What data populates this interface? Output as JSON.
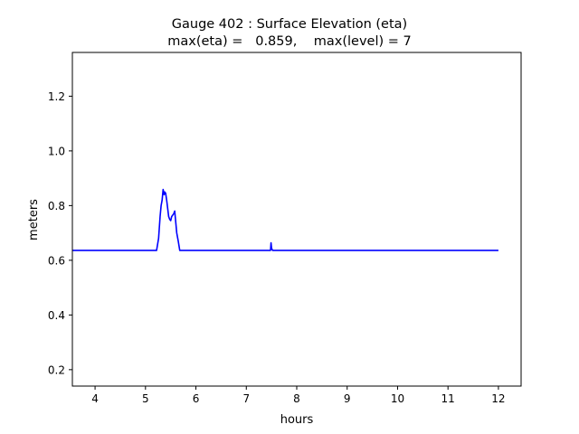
{
  "chart_data": {
    "type": "line",
    "title": "Gauge 402 : Surface Elevation (eta)",
    "subtitle": "max(eta) =   0.859,    max(level) = 7",
    "xlabel": "hours",
    "ylabel": "meters",
    "xlim": [
      3.55,
      12.45
    ],
    "ylim": [
      0.14,
      1.36
    ],
    "xticks": [
      4,
      5,
      6,
      7,
      8,
      9,
      10,
      11,
      12
    ],
    "xtick_labels": [
      "4",
      "5",
      "6",
      "7",
      "8",
      "9",
      "10",
      "11",
      "12"
    ],
    "yticks": [
      0.2,
      0.4,
      0.6,
      0.8,
      1.0,
      1.2
    ],
    "ytick_labels": [
      "0.2",
      "0.4",
      "0.6",
      "0.8",
      "1.0",
      "1.2"
    ],
    "grid": false,
    "series": [
      {
        "color": "#0000ff",
        "x": [
          3.55,
          5.22,
          5.26,
          5.29,
          5.31,
          5.33,
          5.35,
          5.37,
          5.38,
          5.4,
          5.42,
          5.44,
          5.46,
          5.48,
          5.5,
          5.52,
          5.54,
          5.56,
          5.58,
          5.6,
          5.62,
          5.65,
          5.68,
          5.7,
          7.48,
          7.49,
          7.5,
          7.52,
          7.55,
          12.0
        ],
        "y": [
          0.636,
          0.636,
          0.68,
          0.76,
          0.8,
          0.82,
          0.859,
          0.84,
          0.85,
          0.845,
          0.82,
          0.79,
          0.76,
          0.75,
          0.745,
          0.76,
          0.765,
          0.77,
          0.78,
          0.74,
          0.7,
          0.67,
          0.636,
          0.636,
          0.636,
          0.664,
          0.645,
          0.636,
          0.636,
          0.636
        ]
      }
    ]
  }
}
